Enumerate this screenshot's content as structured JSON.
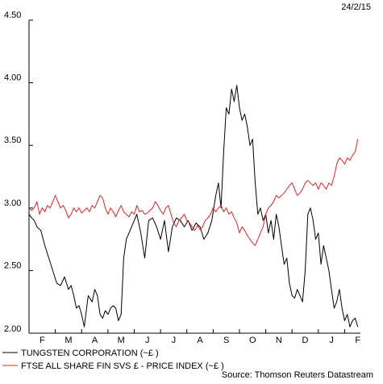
{
  "date_label": "24/2/15",
  "source_label": "Source: Thomson Reuters Datastream",
  "chart_data": {
    "type": "line",
    "title": "",
    "xlabel": "",
    "ylabel": "",
    "ylim": [
      2.0,
      4.5
    ],
    "yticks": [
      "2.00",
      "2.50",
      "3.00",
      "3.50",
      "4.00",
      "4.50"
    ],
    "ytick_values": [
      2.0,
      2.5,
      3.0,
      3.5,
      4.0,
      4.5
    ],
    "xlim": [
      0,
      12.6
    ],
    "month_labels": [
      "F",
      "M",
      "A",
      "M",
      "J",
      "J",
      "A",
      "S",
      "O",
      "N",
      "D",
      "J",
      "F"
    ],
    "grid": false,
    "legend_position": "bottom-left",
    "series": [
      {
        "name": "TUNGSTEN CORPORATION (~£ )",
        "color": "#000000",
        "x": [
          0.0,
          0.1,
          0.2,
          0.3,
          0.45,
          0.6,
          0.75,
          0.9,
          1.05,
          1.2,
          1.35,
          1.5,
          1.6,
          1.7,
          1.8,
          1.9,
          2.0,
          2.1,
          2.25,
          2.4,
          2.5,
          2.6,
          2.7,
          2.8,
          2.9,
          3.0,
          3.1,
          3.2,
          3.3,
          3.4,
          3.5,
          3.6,
          3.7,
          3.8,
          3.9,
          4.0,
          4.1,
          4.25,
          4.4,
          4.55,
          4.7,
          4.85,
          5.0,
          5.15,
          5.3,
          5.45,
          5.6,
          5.75,
          5.9,
          6.05,
          6.2,
          6.35,
          6.5,
          6.65,
          6.8,
          6.95,
          7.1,
          7.2,
          7.3,
          7.4,
          7.5,
          7.6,
          7.7,
          7.8,
          7.9,
          8.0,
          8.1,
          8.2,
          8.3,
          8.4,
          8.5,
          8.6,
          8.7,
          8.8,
          8.9,
          9.0,
          9.1,
          9.2,
          9.3,
          9.4,
          9.5,
          9.6,
          9.7,
          9.8,
          9.9,
          10.0,
          10.1,
          10.2,
          10.3,
          10.4,
          10.5,
          10.6,
          10.7,
          10.8,
          10.9,
          11.0,
          11.1,
          11.2,
          11.3,
          11.4,
          11.5,
          11.6,
          11.7,
          11.8,
          11.9,
          12.0,
          12.1,
          12.2,
          12.3,
          12.4,
          12.5
        ],
        "values": [
          2.95,
          2.92,
          2.9,
          2.85,
          2.82,
          2.7,
          2.6,
          2.5,
          2.4,
          2.38,
          2.45,
          2.35,
          2.38,
          2.3,
          2.2,
          2.22,
          2.15,
          2.05,
          2.3,
          2.25,
          2.35,
          2.3,
          2.15,
          2.12,
          2.18,
          2.15,
          2.2,
          2.22,
          2.2,
          2.1,
          2.15,
          2.6,
          2.75,
          2.8,
          2.85,
          2.9,
          2.95,
          2.8,
          2.6,
          2.9,
          2.92,
          2.85,
          2.75,
          2.9,
          2.65,
          2.85,
          2.92,
          2.9,
          2.85,
          2.9,
          2.82,
          2.88,
          2.85,
          2.75,
          2.8,
          2.9,
          3.1,
          3.2,
          3.0,
          3.45,
          3.8,
          3.75,
          3.95,
          3.85,
          3.98,
          3.8,
          3.7,
          3.75,
          3.65,
          3.5,
          3.55,
          3.2,
          2.95,
          3.0,
          2.9,
          2.95,
          2.8,
          2.9,
          2.75,
          2.95,
          2.85,
          2.7,
          2.55,
          2.6,
          2.4,
          2.3,
          2.28,
          2.35,
          2.3,
          2.25,
          2.5,
          2.95,
          3.0,
          2.9,
          2.75,
          2.8,
          2.55,
          2.7,
          2.6,
          2.5,
          2.35,
          2.2,
          2.25,
          2.35,
          2.2,
          2.1,
          2.15,
          2.05,
          2.1,
          2.12,
          2.05
        ]
      },
      {
        "name": "FTSE ALL SHARE FIN SVS £ - PRICE INDEX (~£ )",
        "color": "#d62828",
        "x": [
          0.0,
          0.1,
          0.2,
          0.3,
          0.4,
          0.5,
          0.6,
          0.7,
          0.8,
          0.9,
          1.0,
          1.1,
          1.2,
          1.3,
          1.4,
          1.5,
          1.6,
          1.7,
          1.8,
          1.9,
          2.0,
          2.1,
          2.2,
          2.3,
          2.4,
          2.5,
          2.6,
          2.7,
          2.8,
          2.9,
          3.0,
          3.1,
          3.2,
          3.3,
          3.4,
          3.5,
          3.6,
          3.7,
          3.8,
          3.9,
          4.0,
          4.1,
          4.2,
          4.3,
          4.4,
          4.5,
          4.6,
          4.7,
          4.8,
          4.9,
          5.0,
          5.1,
          5.2,
          5.3,
          5.4,
          5.5,
          5.6,
          5.7,
          5.8,
          5.9,
          6.0,
          6.1,
          6.2,
          6.3,
          6.4,
          6.5,
          6.6,
          6.7,
          6.8,
          6.9,
          7.0,
          7.1,
          7.2,
          7.3,
          7.4,
          7.5,
          7.6,
          7.7,
          7.8,
          7.9,
          8.0,
          8.1,
          8.2,
          8.3,
          8.4,
          8.5,
          8.6,
          8.7,
          8.8,
          8.9,
          9.0,
          9.1,
          9.2,
          9.3,
          9.4,
          9.5,
          9.6,
          9.7,
          9.8,
          9.9,
          10.0,
          10.1,
          10.2,
          10.3,
          10.4,
          10.5,
          10.6,
          10.7,
          10.8,
          10.9,
          11.0,
          11.1,
          11.2,
          11.3,
          11.4,
          11.5,
          11.6,
          11.7,
          11.8,
          11.9,
          12.0,
          12.1,
          12.2,
          12.3,
          12.4,
          12.5
        ],
        "values": [
          3.0,
          2.98,
          3.0,
          3.05,
          2.95,
          3.0,
          2.97,
          3.02,
          3.0,
          3.05,
          3.1,
          3.05,
          3.0,
          3.02,
          2.98,
          2.92,
          2.95,
          3.0,
          2.97,
          3.0,
          2.96,
          2.98,
          3.0,
          2.97,
          3.02,
          3.0,
          3.05,
          3.1,
          3.08,
          3.0,
          2.95,
          3.0,
          2.97,
          2.93,
          2.98,
          3.02,
          2.97,
          2.95,
          2.93,
          2.97,
          2.95,
          3.02,
          2.97,
          2.98,
          2.95,
          2.96,
          2.98,
          3.0,
          3.05,
          3.02,
          2.98,
          2.95,
          3.0,
          3.02,
          2.95,
          2.88,
          2.85,
          2.9,
          2.92,
          2.95,
          2.9,
          2.88,
          2.85,
          2.82,
          2.86,
          2.83,
          2.85,
          2.9,
          2.92,
          2.95,
          3.0,
          2.97,
          3.0,
          3.02,
          2.97,
          3.0,
          2.95,
          2.97,
          2.92,
          2.88,
          2.8,
          2.85,
          2.82,
          2.78,
          2.75,
          2.72,
          2.7,
          2.75,
          2.8,
          2.85,
          2.95,
          3.0,
          3.02,
          3.05,
          3.1,
          3.08,
          3.1,
          3.12,
          3.15,
          3.18,
          3.2,
          3.15,
          3.1,
          3.12,
          3.15,
          3.2,
          3.22,
          3.2,
          3.18,
          3.2,
          3.15,
          3.2,
          3.18,
          3.15,
          3.2,
          3.18,
          3.25,
          3.35,
          3.4,
          3.38,
          3.35,
          3.4,
          3.38,
          3.42,
          3.45,
          3.55
        ]
      }
    ]
  }
}
